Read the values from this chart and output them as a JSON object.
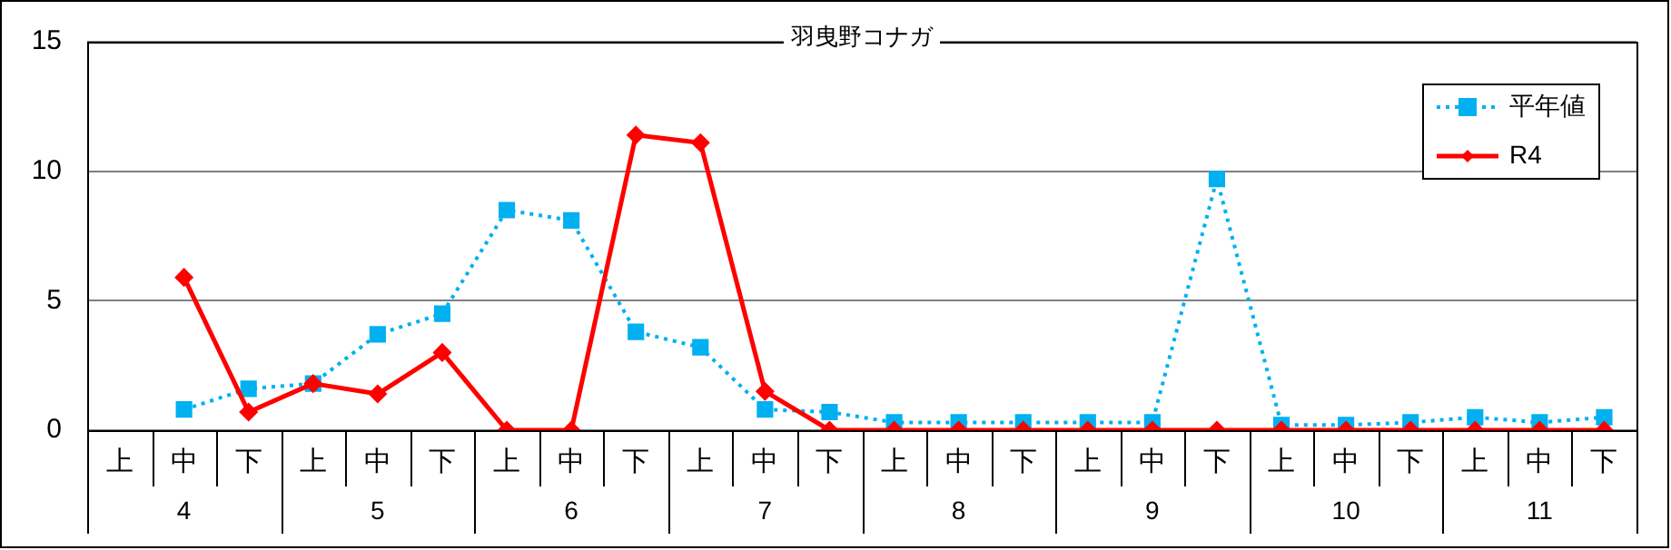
{
  "chart_data": {
    "type": "line",
    "title": "羽曳野コナガ",
    "categories": [
      "上",
      "中",
      "下",
      "上",
      "中",
      "下",
      "上",
      "中",
      "下",
      "上",
      "中",
      "下",
      "上",
      "中",
      "下",
      "上",
      "中",
      "下",
      "上",
      "中",
      "下",
      "上",
      "中",
      "下"
    ],
    "annotations": [
      "4",
      "5",
      "6",
      "7",
      "8",
      "9",
      "10",
      "11"
    ],
    "series": [
      {
        "name": "平年値",
        "color": "#00b0f0",
        "marker": "square",
        "line_style": "dotted",
        "values": [
          null,
          0.8,
          1.6,
          1.8,
          3.7,
          4.5,
          8.5,
          8.1,
          3.8,
          3.2,
          0.8,
          0.7,
          0.3,
          0.3,
          0.3,
          0.3,
          0.3,
          9.7,
          0.2,
          0.2,
          0.3,
          0.5,
          0.3,
          0.5
        ]
      },
      {
        "name": "R4",
        "color": "#ff0000",
        "marker": "diamond",
        "line_style": "solid",
        "values": [
          null,
          5.9,
          0.7,
          1.8,
          1.4,
          3.0,
          0,
          0,
          11.4,
          11.1,
          1.5,
          0,
          0,
          0,
          0,
          0,
          0,
          0,
          0,
          0,
          0,
          0,
          0,
          0
        ]
      }
    ],
    "ylim": [
      0,
      15
    ],
    "yticks": [
      0,
      5,
      10,
      15
    ],
    "grid": "y",
    "legend": "top right"
  }
}
